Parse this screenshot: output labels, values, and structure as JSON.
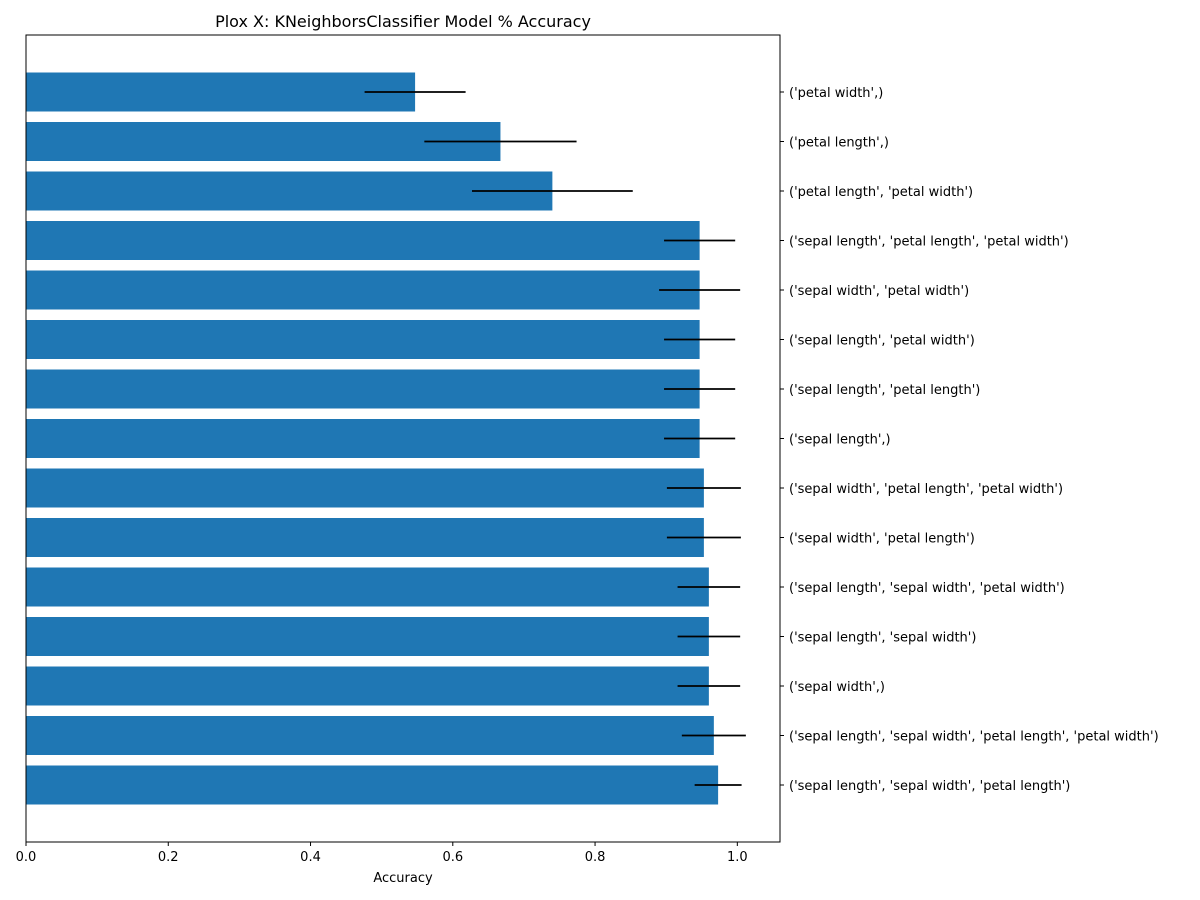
{
  "chart_data": {
    "type": "bar",
    "orientation": "horizontal",
    "title": "Plox X: KNeighborsClassifier Model % Accuracy",
    "xlabel": "Accuracy",
    "ylabel": "",
    "xlim": [
      0,
      1.06
    ],
    "x_ticks": [
      0.0,
      0.2,
      0.4,
      0.6,
      0.8,
      1.0
    ],
    "x_tick_labels": [
      "0.0",
      "0.2",
      "0.4",
      "0.6",
      "0.8",
      "1.0"
    ],
    "y_tick_position": "right",
    "grid": false,
    "bar_color": "#1f77b4",
    "error_bar_color": "#000000",
    "categories": [
      "('petal width',)",
      "('petal length',)",
      "('petal length', 'petal width')",
      "('sepal length', 'petal length', 'petal width')",
      "('sepal width', 'petal width')",
      "('sepal length', 'petal width')",
      "('sepal length', 'petal length')",
      "('sepal length',)",
      "('sepal width', 'petal length', 'petal width')",
      "('sepal width', 'petal length')",
      "('sepal length', 'sepal width', 'petal width')",
      "('sepal length', 'sepal width')",
      "('sepal width',)",
      "('sepal length', 'sepal width', 'petal length', 'petal width')",
      "('sepal length', 'sepal width', 'petal length')"
    ],
    "values": [
      0.547,
      0.667,
      0.74,
      0.947,
      0.947,
      0.947,
      0.947,
      0.947,
      0.953,
      0.953,
      0.96,
      0.96,
      0.96,
      0.967,
      0.973
    ],
    "errors": [
      0.071,
      0.107,
      0.113,
      0.05,
      0.057,
      0.05,
      0.05,
      0.05,
      0.052,
      0.052,
      0.044,
      0.044,
      0.044,
      0.045,
      0.033
    ]
  }
}
